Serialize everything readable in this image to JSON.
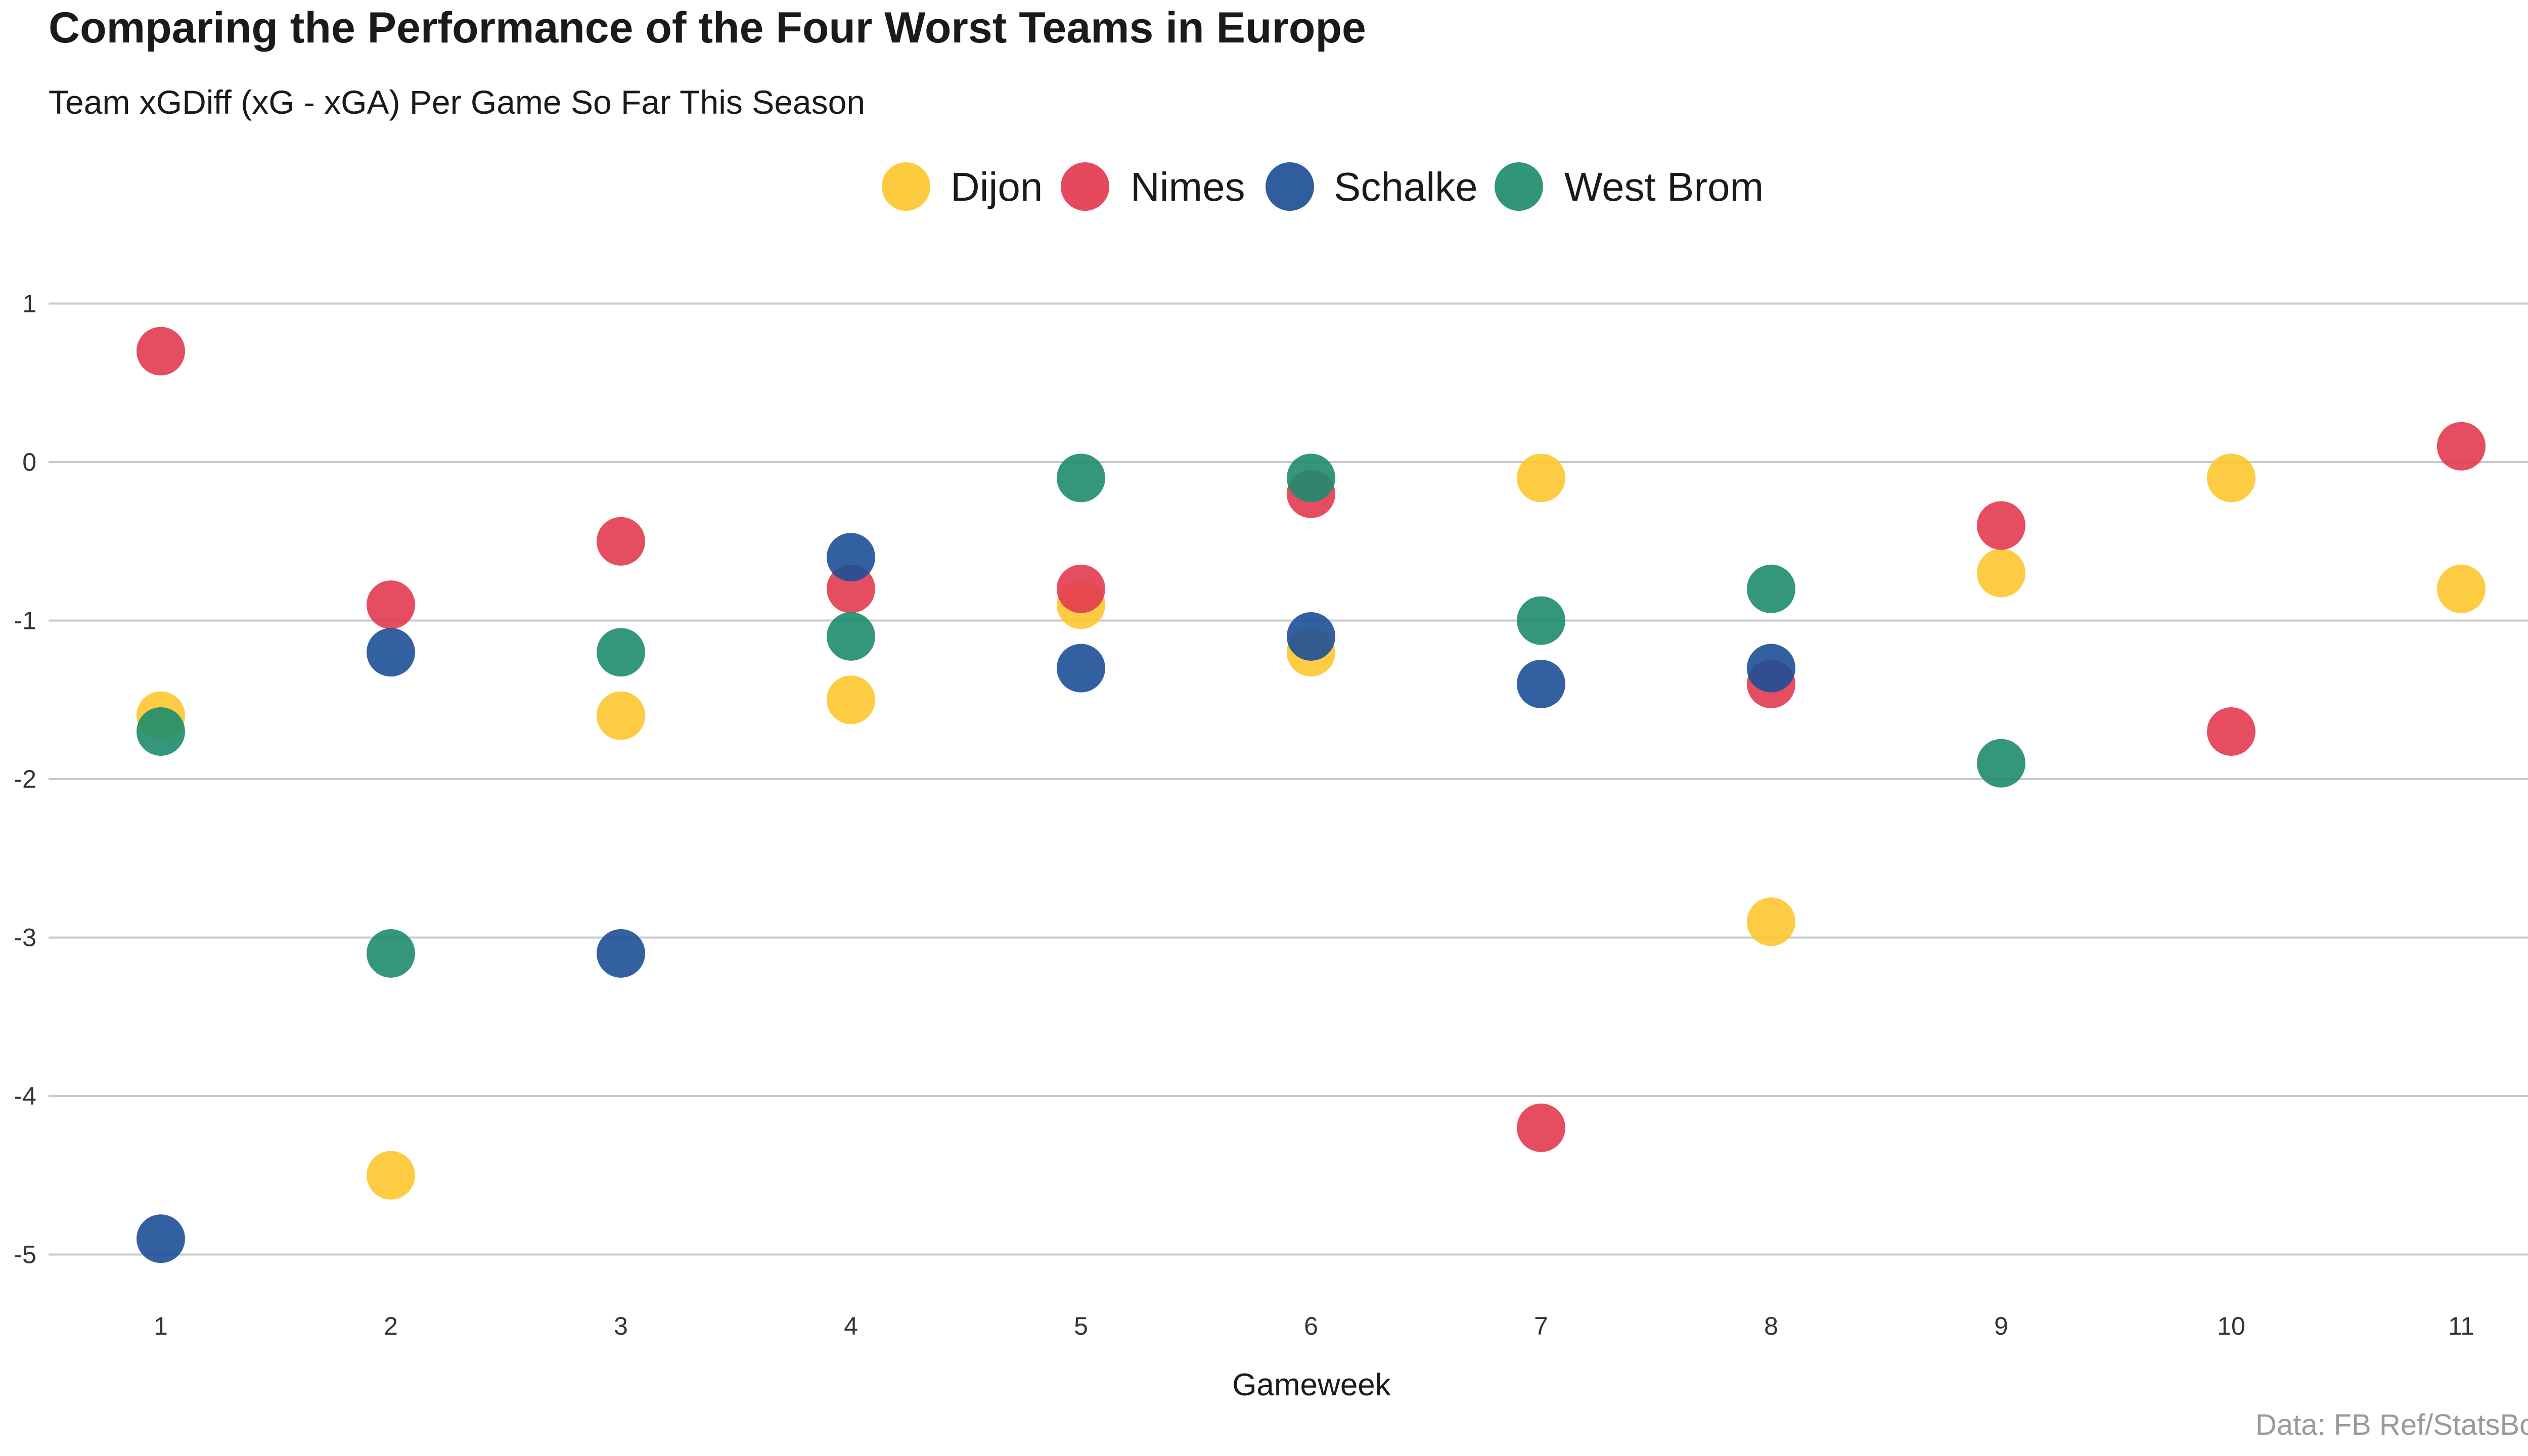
{
  "chart_data": {
    "type": "scatter",
    "title": "Comparing the Performance of the Four Worst Teams in Europe",
    "subtitle": "Team xGDiff (xG - xGA) Per Game So Far This Season",
    "xlabel": "Gameweek",
    "ylabel": "",
    "caption": "Data: FB Ref/StatsBomb",
    "xlim": [
      1,
      11
    ],
    "ylim": [
      -5,
      1
    ],
    "x_ticks": [
      1,
      2,
      3,
      4,
      5,
      6,
      7,
      8,
      9,
      10,
      11
    ],
    "y_ticks": [
      1,
      0,
      -1,
      -2,
      -3,
      -4,
      -5
    ],
    "grid": "horizontal",
    "legend_position": "top",
    "series": [
      {
        "name": "Dijon",
        "color": "#FDC72F",
        "points": [
          [
            1,
            -1.6
          ],
          [
            2,
            -4.5
          ],
          [
            3,
            -1.6
          ],
          [
            4,
            -1.5
          ],
          [
            5,
            -0.9
          ],
          [
            6,
            -1.2
          ],
          [
            7,
            -0.1
          ],
          [
            8,
            -2.9
          ],
          [
            9,
            -0.7
          ],
          [
            10,
            -0.1
          ],
          [
            11,
            -0.8
          ]
        ]
      },
      {
        "name": "Nimes",
        "color": "#E23A50",
        "points": [
          [
            1,
            0.7
          ],
          [
            2,
            -0.9
          ],
          [
            3,
            -0.5
          ],
          [
            4,
            -0.8
          ],
          [
            5,
            -0.8
          ],
          [
            6,
            -0.2
          ],
          [
            7,
            -4.2
          ],
          [
            8,
            -1.4
          ],
          [
            9,
            -0.4
          ],
          [
            10,
            -1.7
          ],
          [
            11,
            0.1
          ]
        ]
      },
      {
        "name": "Schalke",
        "color": "#1D4F96",
        "points": [
          [
            1,
            -4.9
          ],
          [
            2,
            -1.2
          ],
          [
            3,
            -3.1
          ],
          [
            4,
            -0.6
          ],
          [
            5,
            -1.3
          ],
          [
            6,
            -1.1
          ],
          [
            7,
            -1.4
          ],
          [
            8,
            -1.3
          ]
        ]
      },
      {
        "name": "West Brom",
        "color": "#1E8C6E",
        "points": [
          [
            1,
            -1.7
          ],
          [
            2,
            -3.1
          ],
          [
            3,
            -1.2
          ],
          [
            4,
            -1.1
          ],
          [
            5,
            -0.1
          ],
          [
            6,
            -0.1
          ],
          [
            7,
            -1.0
          ],
          [
            8,
            -0.8
          ],
          [
            9,
            -1.9
          ]
        ]
      }
    ]
  }
}
